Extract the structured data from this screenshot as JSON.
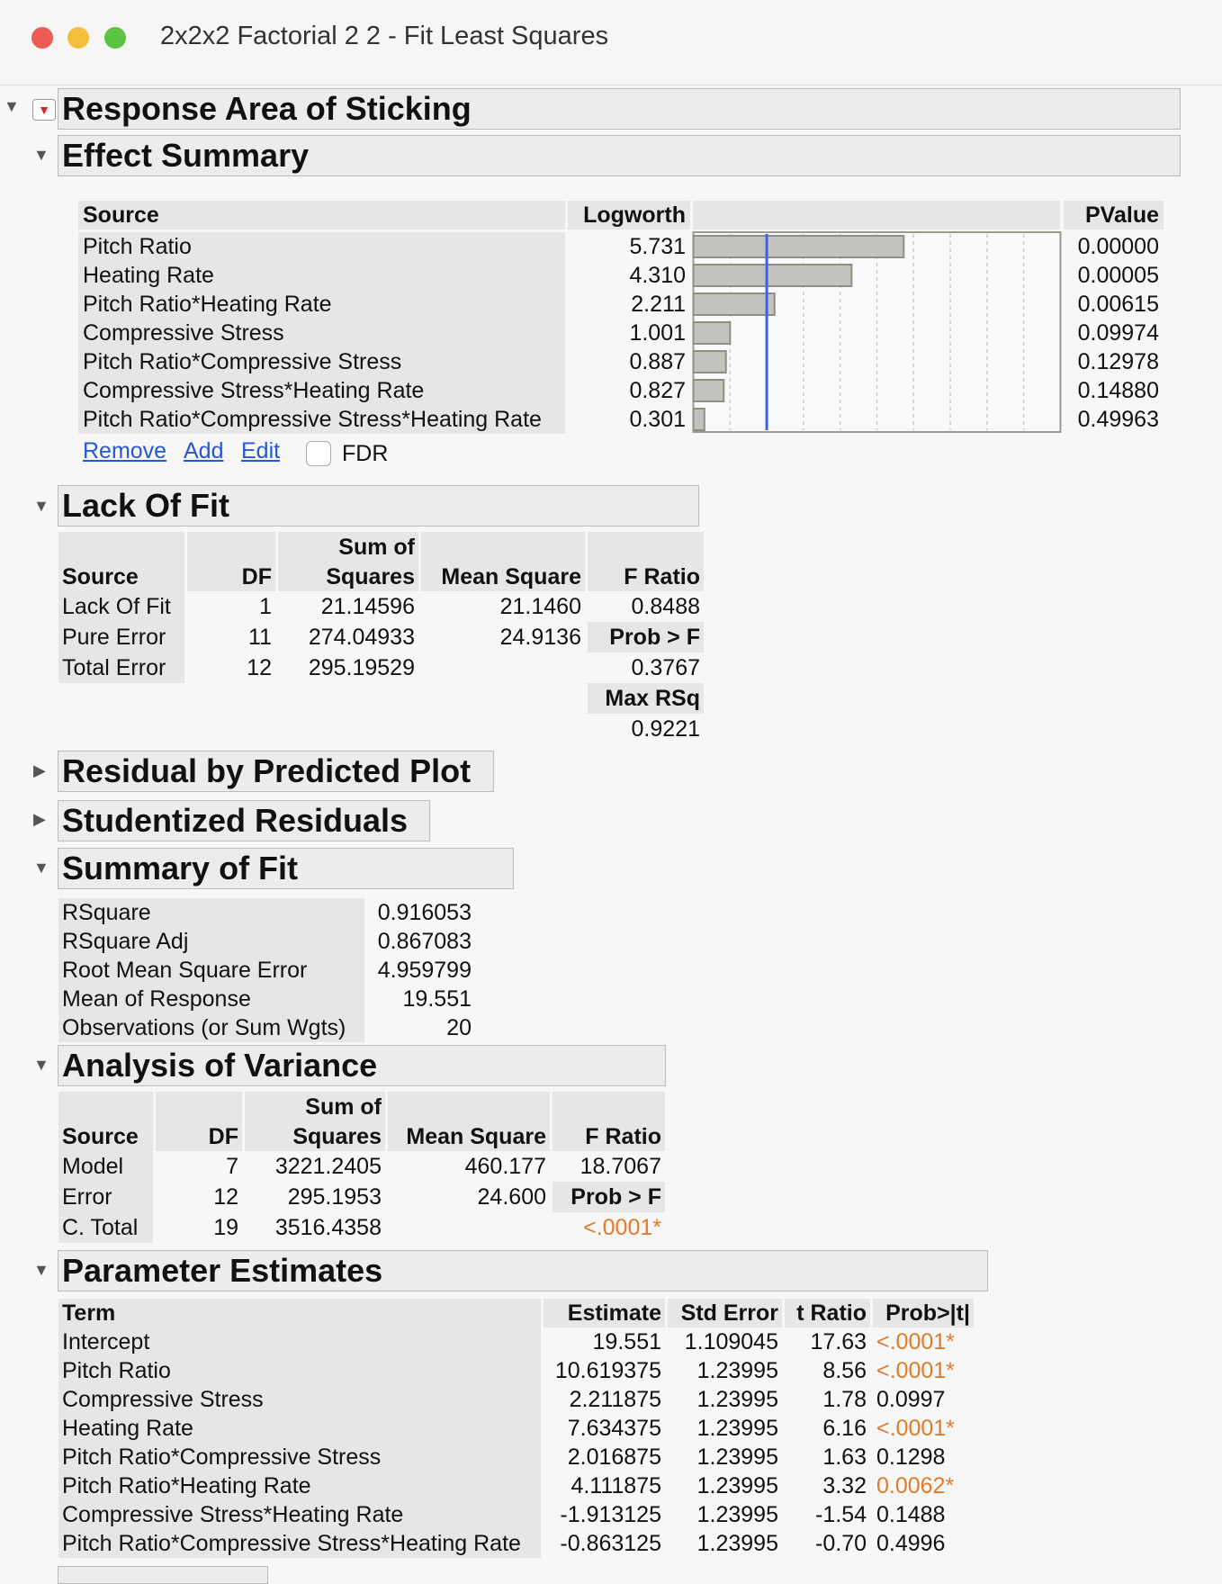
{
  "window": {
    "title": "2x2x2 Factorial 2 2 - Fit Least Squares",
    "colors": {
      "close": "#ee5b55",
      "minimize": "#f6bd3b",
      "zoom": "#5cc443"
    }
  },
  "report": {
    "title": "Response Area of Sticking"
  },
  "effect_summary": {
    "title": "Effect Summary",
    "headers": [
      "Source",
      "Logworth",
      "PValue"
    ],
    "rows": [
      {
        "source": "Pitch Ratio",
        "logworth": "5.731",
        "pvalue": "0.00000"
      },
      {
        "source": "Heating Rate",
        "logworth": "4.310",
        "pvalue": "0.00005"
      },
      {
        "source": "Pitch Ratio*Heating Rate",
        "logworth": "2.211",
        "pvalue": "0.00615"
      },
      {
        "source": "Compressive Stress",
        "logworth": "1.001",
        "pvalue": "0.09974"
      },
      {
        "source": "Pitch Ratio*Compressive Stress",
        "logworth": "0.887",
        "pvalue": "0.12978"
      },
      {
        "source": "Compressive Stress*Heating Rate",
        "logworth": "0.827",
        "pvalue": "0.14880"
      },
      {
        "source": "Pitch Ratio*Compressive Stress*Heating Rate",
        "logworth": "0.301",
        "pvalue": "0.49963"
      }
    ],
    "remove": "Remove",
    "add": "Add",
    "edit": "Edit",
    "fdr": "FDR",
    "fdr_checked": false
  },
  "chart_data": {
    "type": "bar",
    "orientation": "horizontal",
    "categories": [
      "Pitch Ratio",
      "Heating Rate",
      "Pitch Ratio*Heating Rate",
      "Compressive Stress",
      "Pitch Ratio*Compressive Stress",
      "Compressive Stress*Heating Rate",
      "Pitch Ratio*Compressive Stress*Heating Rate"
    ],
    "values": [
      5.731,
      4.31,
      2.211,
      1.001,
      0.887,
      0.827,
      0.301
    ],
    "xlim": [
      0,
      10
    ],
    "reference_line": 2,
    "reference_color": "#3a62f0",
    "bar_color": "#c2c3bc",
    "grid": true
  },
  "lack_of_fit": {
    "title": "Lack Of Fit",
    "headers": {
      "source": "Source",
      "df": "DF",
      "ss_top": "Sum of",
      "ss": "Squares",
      "ms": "Mean Square",
      "f": "F Ratio"
    },
    "rows": [
      {
        "source": "Lack Of Fit",
        "df": "1",
        "ss": "21.14596",
        "ms": "21.1460",
        "f": "0.8488"
      },
      {
        "source": "Pure Error",
        "df": "11",
        "ss": "274.04933",
        "ms": "24.9136",
        "f_label": "Prob > F"
      },
      {
        "source": "Total Error",
        "df": "12",
        "ss": "295.19529",
        "f": "0.3767"
      }
    ],
    "max_rsq_label": "Max RSq",
    "max_rsq": "0.9221"
  },
  "residual_plot": {
    "title": "Residual by Predicted Plot"
  },
  "studentized": {
    "title": "Studentized Residuals"
  },
  "summary_of_fit": {
    "title": "Summary of Fit",
    "rows": [
      {
        "label": "RSquare",
        "value": "0.916053"
      },
      {
        "label": "RSquare Adj",
        "value": "0.867083"
      },
      {
        "label": "Root Mean Square Error",
        "value": "4.959799"
      },
      {
        "label": "Mean of Response",
        "value": "19.551"
      },
      {
        "label": "Observations (or Sum Wgts)",
        "value": "20"
      }
    ]
  },
  "anova": {
    "title": "Analysis of Variance",
    "headers": {
      "source": "Source",
      "df": "DF",
      "ss_top": "Sum of",
      "ss": "Squares",
      "ms": "Mean Square",
      "f": "F Ratio"
    },
    "rows": [
      {
        "source": "Model",
        "df": "7",
        "ss": "3221.2405",
        "ms": "460.177",
        "f": "18.7067"
      },
      {
        "source": "Error",
        "df": "12",
        "ss": "295.1953",
        "ms": "24.600",
        "f_label": "Prob > F"
      },
      {
        "source": "C. Total",
        "df": "19",
        "ss": "3516.4358",
        "f": "<.0001*"
      }
    ]
  },
  "parameter_estimates": {
    "title": "Parameter Estimates",
    "headers": [
      "Term",
      "Estimate",
      "Std Error",
      "t Ratio",
      "Prob>|t|"
    ],
    "rows": [
      {
        "term": "Intercept",
        "est": "19.551",
        "se": "1.109045",
        "t": "17.63",
        "p": "<.0001*",
        "sig": true
      },
      {
        "term": "Pitch Ratio",
        "est": "10.619375",
        "se": "1.23995",
        "t": "8.56",
        "p": "<.0001*",
        "sig": true
      },
      {
        "term": "Compressive Stress",
        "est": "2.211875",
        "se": "1.23995",
        "t": "1.78",
        "p": "0.0997",
        "sig": false
      },
      {
        "term": "Heating Rate",
        "est": "7.634375",
        "se": "1.23995",
        "t": "6.16",
        "p": "<.0001*",
        "sig": true
      },
      {
        "term": "Pitch Ratio*Compressive Stress",
        "est": "2.016875",
        "se": "1.23995",
        "t": "1.63",
        "p": "0.1298",
        "sig": false
      },
      {
        "term": "Pitch Ratio*Heating Rate",
        "est": "4.111875",
        "se": "1.23995",
        "t": "3.32",
        "p": "0.0062*",
        "sig": true
      },
      {
        "term": "Compressive Stress*Heating Rate",
        "est": "-1.913125",
        "se": "1.23995",
        "t": "-1.54",
        "p": "0.1488",
        "sig": false
      },
      {
        "term": "Pitch Ratio*Compressive Stress*Heating Rate",
        "est": "-0.863125",
        "se": "1.23995",
        "t": "-0.70",
        "p": "0.4996",
        "sig": false
      }
    ]
  }
}
